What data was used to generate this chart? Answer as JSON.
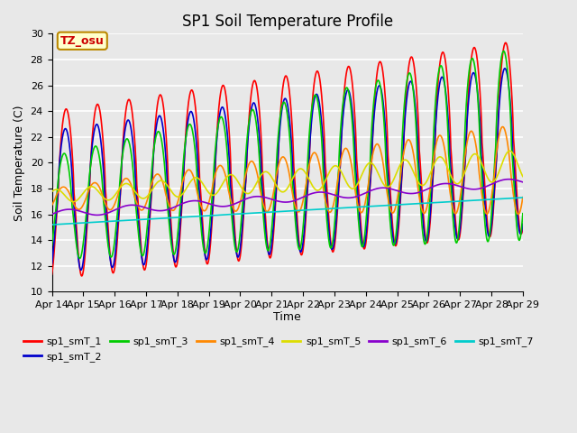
{
  "title": "SP1 Soil Temperature Profile",
  "xlabel": "Time",
  "ylabel": "Soil Temperature (C)",
  "ylim": [
    10,
    30
  ],
  "x_tick_labels": [
    "Apr 14",
    "Apr 15",
    "Apr 16",
    "Apr 17",
    "Apr 18",
    "Apr 19",
    "Apr 20",
    "Apr 21",
    "Apr 22",
    "Apr 23",
    "Apr 24",
    "Apr 25",
    "Apr 26",
    "Apr 27",
    "Apr 28",
    "Apr 29"
  ],
  "annotation_text": "TZ_osu",
  "annotation_text_color": "#cc0000",
  "annotation_box_facecolor": "#ffffcc",
  "annotation_box_edgecolor": "#bb8800",
  "series_colors": {
    "sp1_smT_1": "#ff0000",
    "sp1_smT_2": "#0000cc",
    "sp1_smT_3": "#00cc00",
    "sp1_smT_4": "#ff8800",
    "sp1_smT_5": "#dddd00",
    "sp1_smT_6": "#8800cc",
    "sp1_smT_7": "#00cccc"
  },
  "plot_bg_color": "#e8e8e8",
  "grid_color": "#ffffff",
  "title_fontsize": 12,
  "axis_label_fontsize": 9,
  "tick_fontsize": 8,
  "line_width": 1.2
}
